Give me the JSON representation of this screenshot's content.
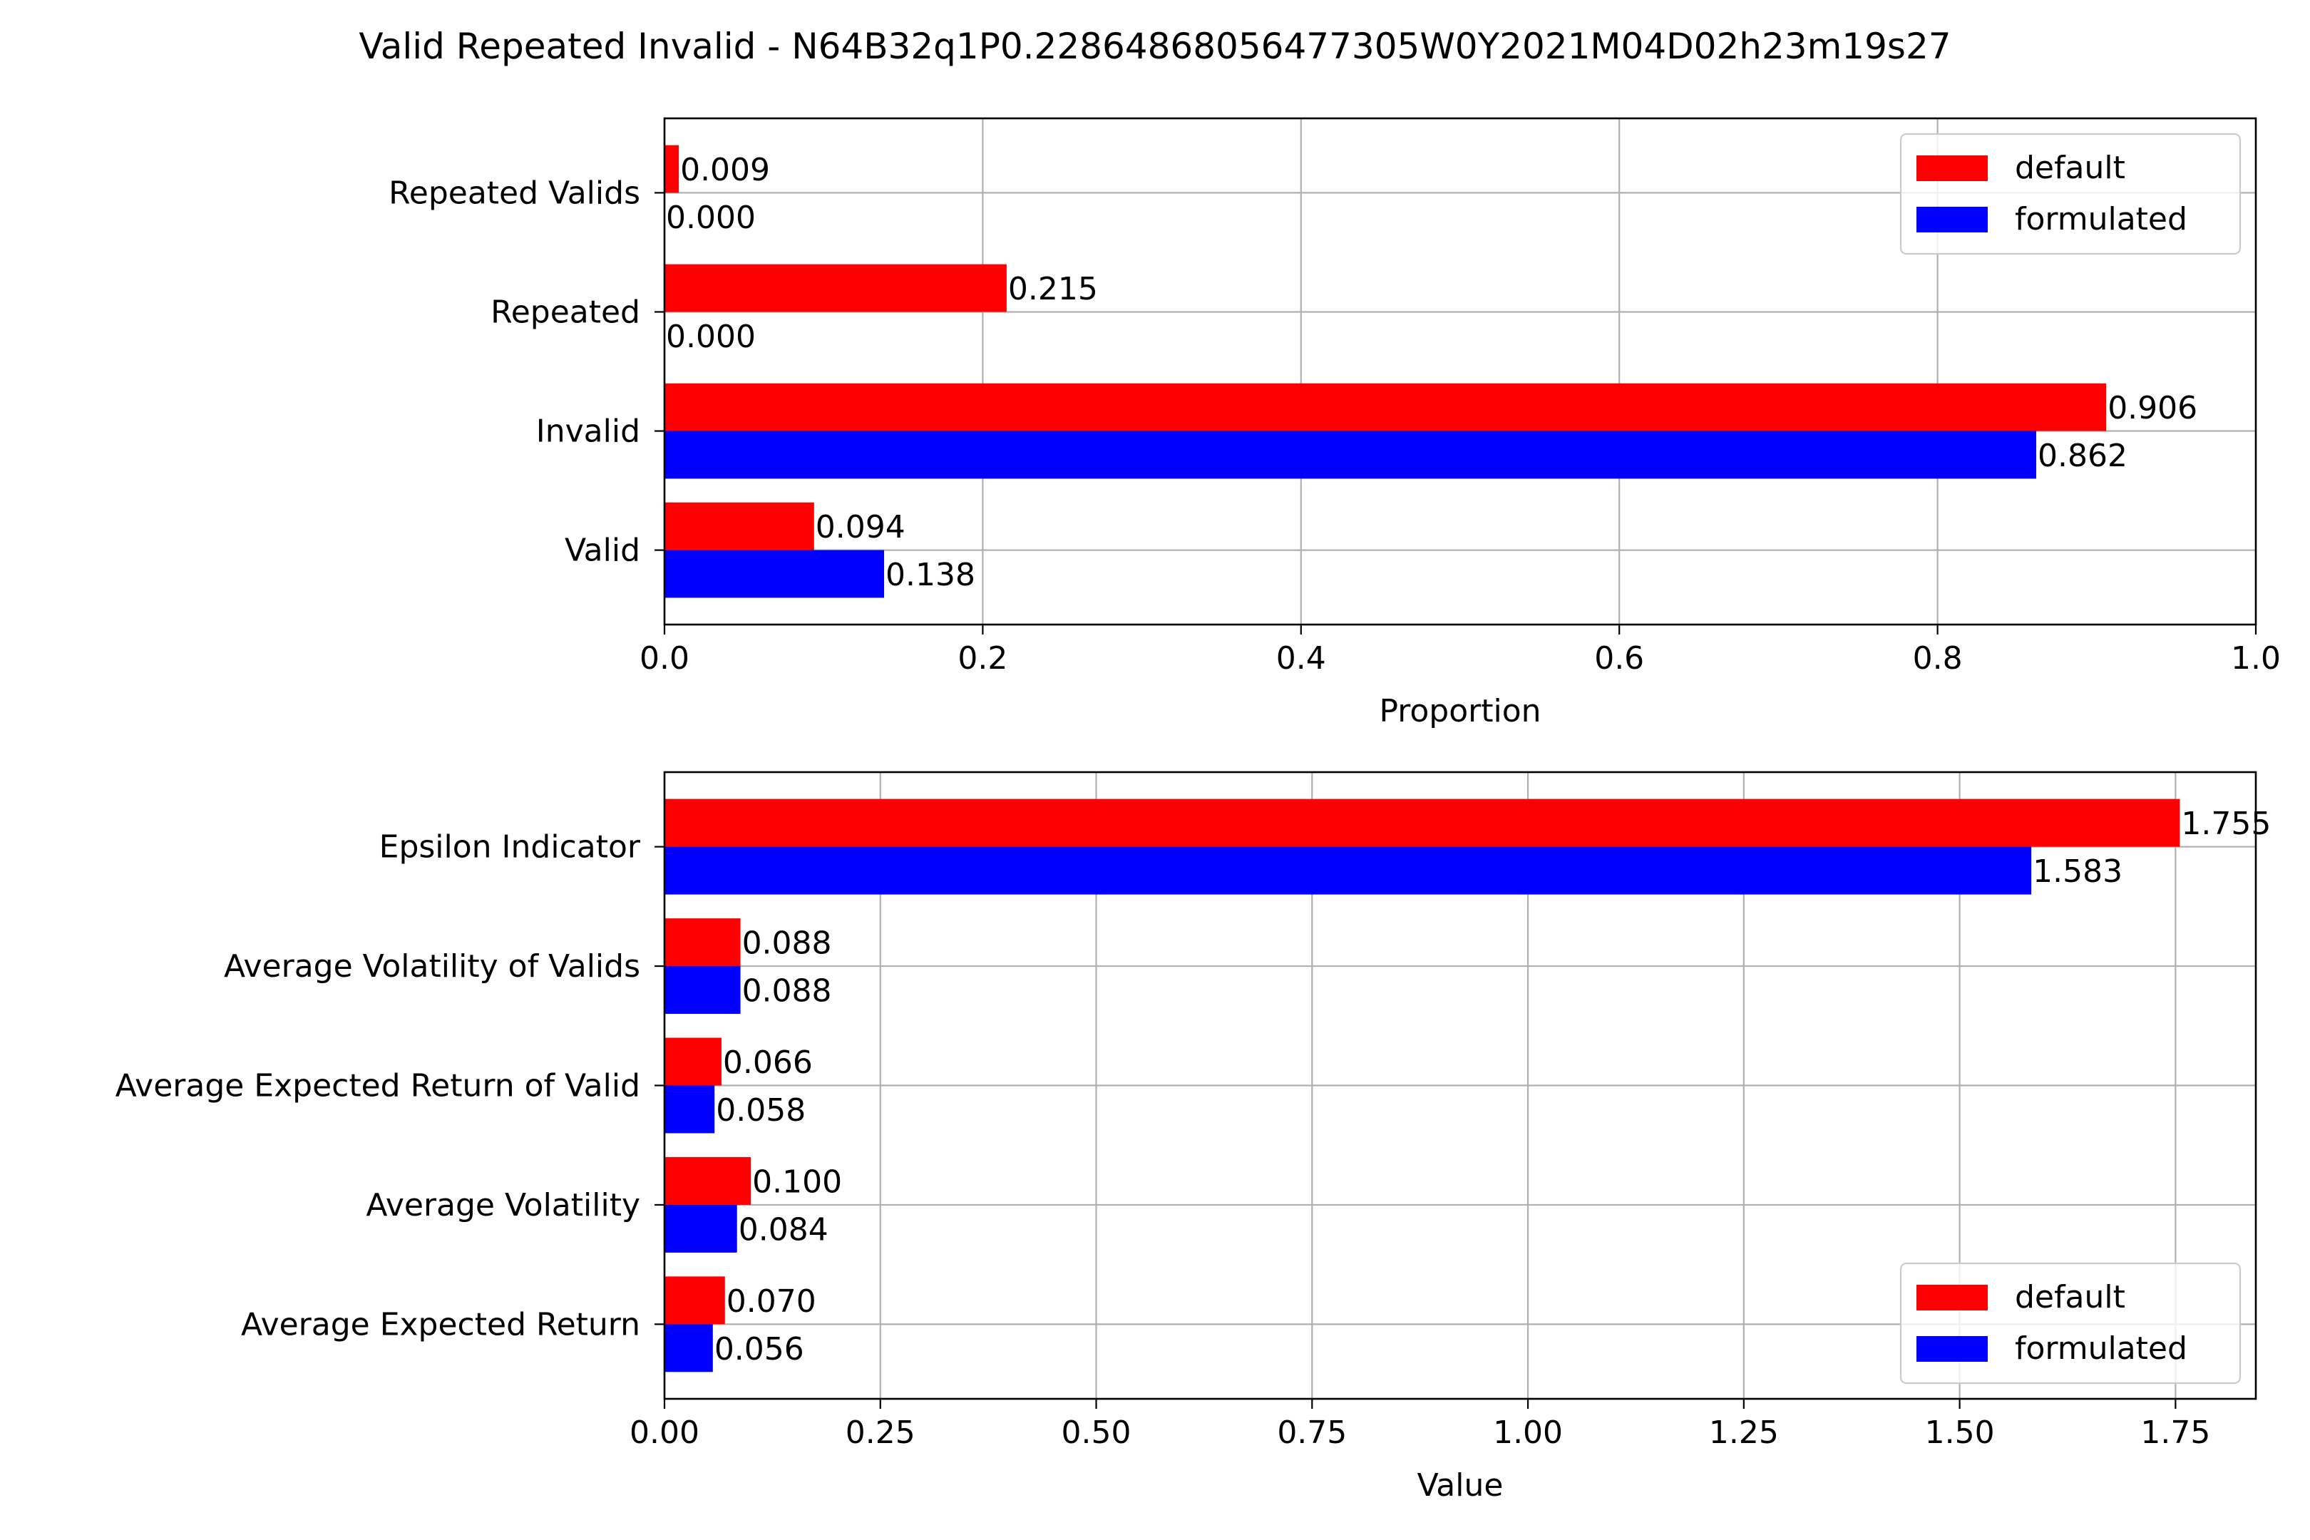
{
  "title": "Valid Repeated Invalid - N64B32q1P0.22864868056477305W0Y2021M04D02h23m19s27",
  "chart_data": [
    {
      "type": "bar",
      "orientation": "horizontal",
      "categories": [
        "Valid",
        "Invalid",
        "Repeated",
        "Repeated Valids"
      ],
      "series": [
        {
          "name": "default",
          "color": "#ff0000",
          "values": [
            0.094,
            0.906,
            0.215,
            0.009
          ],
          "labels": [
            "0.094",
            "0.906",
            "0.215",
            "0.009"
          ]
        },
        {
          "name": "formulated",
          "color": "#0000ff",
          "values": [
            0.138,
            0.862,
            0.0,
            0.0
          ],
          "labels": [
            "0.138",
            "0.862",
            "0.000",
            "0.000"
          ]
        }
      ],
      "xlabel": "Proportion",
      "xlim": [
        0,
        1.0
      ],
      "xticks": [
        0,
        0.2,
        0.4,
        0.6,
        0.8,
        1.0
      ],
      "xtick_labels": [
        "0.0",
        "0.2",
        "0.4",
        "0.6",
        "0.8",
        "1.0"
      ],
      "grid": true,
      "legend_position": "upper right"
    },
    {
      "type": "bar",
      "orientation": "horizontal",
      "categories": [
        "Average Expected Return",
        "Average Volatility",
        "Average Expected Return of Valid",
        "Average Volatility of Valids",
        "Epsilon Indicator"
      ],
      "series": [
        {
          "name": "default",
          "color": "#ff0000",
          "values": [
            0.07,
            0.1,
            0.066,
            0.088,
            1.755
          ],
          "labels": [
            "0.070",
            "0.100",
            "0.066",
            "0.088",
            "1.755"
          ]
        },
        {
          "name": "formulated",
          "color": "#0000ff",
          "values": [
            0.056,
            0.084,
            0.058,
            0.088,
            1.583
          ],
          "labels": [
            "0.056",
            "0.084",
            "0.058",
            "0.088",
            "1.583"
          ]
        }
      ],
      "xlabel": "Value",
      "xlim": [
        0,
        1.843
      ],
      "xticks": [
        0,
        0.25,
        0.5,
        0.75,
        1.0,
        1.25,
        1.5,
        1.75
      ],
      "xtick_labels": [
        "0.00",
        "0.25",
        "0.50",
        "0.75",
        "1.00",
        "1.25",
        "1.50",
        "1.75"
      ],
      "grid": true,
      "legend_position": "lower right"
    }
  ]
}
